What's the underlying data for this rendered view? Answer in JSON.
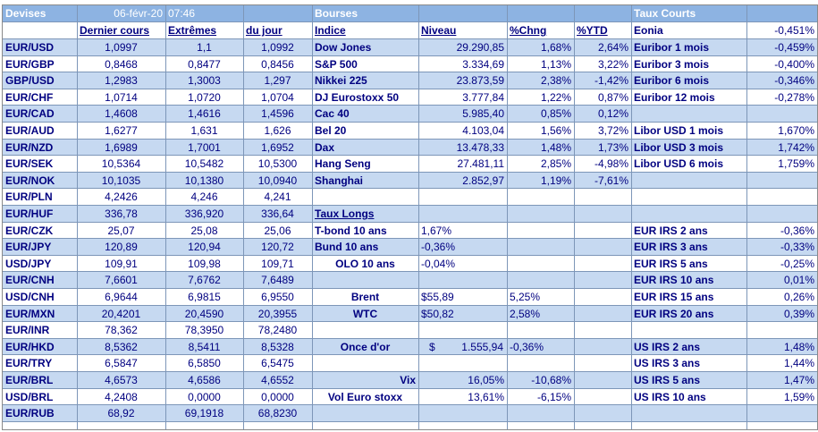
{
  "header": {
    "devises": "Devises",
    "date": "06-févr-20",
    "time": "07:46",
    "bourses": "Bourses",
    "taux_courts": "Taux Courts",
    "eonia_label": "Eonia",
    "eonia_value": "-0,451%"
  },
  "columns": {
    "dernier_cours": "Dernier cours",
    "extremes": "Extrêmes",
    "du_jour": "du jour",
    "indice": "Indice",
    "niveau": "Niveau",
    "chng": "%Chng",
    "ytd": "%YTD"
  },
  "devises": [
    {
      "pair": "EUR/USD",
      "dernier": "1,0997",
      "extreme": "1,1",
      "jour": "1,0992"
    },
    {
      "pair": "EUR/GBP",
      "dernier": "0,8468",
      "extreme": "0,8477",
      "jour": "0,8456"
    },
    {
      "pair": "GBP/USD",
      "dernier": "1,2983",
      "extreme": "1,3003",
      "jour": "1,297"
    },
    {
      "pair": "EUR/CHF",
      "dernier": "1,0714",
      "extreme": "1,0720",
      "jour": "1,0704"
    },
    {
      "pair": "EUR/CAD",
      "dernier": "1,4608",
      "extreme": "1,4616",
      "jour": "1,4596"
    },
    {
      "pair": "EUR/AUD",
      "dernier": "1,6277",
      "extreme": "1,631",
      "jour": "1,626"
    },
    {
      "pair": "EUR/NZD",
      "dernier": "1,6989",
      "extreme": "1,7001",
      "jour": "1,6952"
    },
    {
      "pair": "EUR/SEK",
      "dernier": "10,5364",
      "extreme": "10,5482",
      "jour": "10,5300"
    },
    {
      "pair": "EUR/NOK",
      "dernier": "10,1035",
      "extreme": "10,1380",
      "jour": "10,0940"
    },
    {
      "pair": "EUR/PLN",
      "dernier": "4,2426",
      "extreme": "4,246",
      "jour": "4,241"
    },
    {
      "pair": "EUR/HUF",
      "dernier": "336,78",
      "extreme": "336,920",
      "jour": "336,64"
    },
    {
      "pair": "EUR/CZK",
      "dernier": "25,07",
      "extreme": "25,08",
      "jour": "25,06"
    },
    {
      "pair": "EUR/JPY",
      "dernier": "120,89",
      "extreme": "120,94",
      "jour": "120,72"
    },
    {
      "pair": "USD/JPY",
      "dernier": "109,91",
      "extreme": "109,98",
      "jour": "109,71"
    },
    {
      "pair": "EUR/CNH",
      "dernier": "7,6601",
      "extreme": "7,6762",
      "jour": "7,6489"
    },
    {
      "pair": "USD/CNH",
      "dernier": "6,9644",
      "extreme": "6,9815",
      "jour": "6,9550"
    },
    {
      "pair": "EUR/MXN",
      "dernier": "20,4201",
      "extreme": "20,4590",
      "jour": "20,3955"
    },
    {
      "pair": "EUR/INR",
      "dernier": "78,362",
      "extreme": "78,3950",
      "jour": "78,2480"
    },
    {
      "pair": "EUR/HKD",
      "dernier": "8,5362",
      "extreme": "8,5411",
      "jour": "8,5328"
    },
    {
      "pair": "EUR/TRY",
      "dernier": "6,5847",
      "extreme": "6,5850",
      "jour": "6,5475"
    },
    {
      "pair": "EUR/BRL",
      "dernier": "4,6573",
      "extreme": "4,6586",
      "jour": "4,6552"
    },
    {
      "pair": "USD/BRL",
      "dernier": "4,2408",
      "extreme": "0,0000",
      "jour": "0,0000"
    },
    {
      "pair": "EUR/RUB",
      "dernier": "68,92",
      "extreme": "69,1918",
      "jour": "68,8230"
    }
  ],
  "bourses": [
    {
      "indice": "Dow Jones",
      "niveau": "29.290,85",
      "chng": "1,68%",
      "ytd": "2,64%"
    },
    {
      "indice": "S&P 500",
      "niveau": "3.334,69",
      "chng": "1,13%",
      "ytd": "3,22%"
    },
    {
      "indice": "Nikkei 225",
      "niveau": "23.873,59",
      "chng": "2,38%",
      "ytd": "-1,42%"
    },
    {
      "indice": "DJ Eurostoxx 50",
      "niveau": "3.777,84",
      "chng": "1,22%",
      "ytd": "0,87%"
    },
    {
      "indice": "Cac 40",
      "niveau": "5.985,40",
      "chng": "0,85%",
      "ytd": "0,12%"
    },
    {
      "indice": "Bel 20",
      "niveau": "4.103,04",
      "chng": "1,56%",
      "ytd": "3,72%"
    },
    {
      "indice": "Dax",
      "niveau": "13.478,33",
      "chng": "1,48%",
      "ytd": "1,73%"
    },
    {
      "indice": "Hang Seng",
      "niveau": "27.481,11",
      "chng": "2,85%",
      "ytd": "-4,98%"
    },
    {
      "indice": "Shanghai",
      "niveau": "2.852,97",
      "chng": "1,19%",
      "ytd": "-7,61%"
    }
  ],
  "taux_courts": [
    {
      "label": "Euribor 1 mois",
      "value": "-0,459%"
    },
    {
      "label": "Euribor 3 mois",
      "value": "-0,400%"
    },
    {
      "label": "Euribor 6 mois",
      "value": "-0,346%"
    },
    {
      "label": "Euribor 12 mois",
      "value": "-0,278%"
    },
    {
      "label": "",
      "value": ""
    },
    {
      "label": "Libor USD 1 mois",
      "value": "1,670%"
    },
    {
      "label": "Libor USD 3 mois",
      "value": "1,742%"
    },
    {
      "label": "Libor USD 6 mois",
      "value": "1,759%"
    }
  ],
  "taux_longs": {
    "title": "Taux Longs",
    "rows": [
      {
        "label": "T-bond 10 ans",
        "value": "1,67%"
      },
      {
        "label": "Bund 10 ans",
        "value": "-0,36%"
      },
      {
        "label": "OLO 10 ans",
        "value": "-0,04%"
      }
    ]
  },
  "commodities": [
    {
      "label": "Brent",
      "value": "$55,89",
      "chng": "5,25%"
    },
    {
      "label": "WTC",
      "value": "$50,82",
      "chng": "2,58%"
    },
    {
      "label": "Once d'or",
      "currency": "$",
      "value": "1.555,94",
      "chng": "-0,36%"
    }
  ],
  "volatility": [
    {
      "label": "Vix",
      "value": "16,05%",
      "chng": "-10,68%"
    },
    {
      "label": "Vol Euro stoxx",
      "value": "13,61%",
      "chng": "-6,15%"
    }
  ],
  "irs": [
    {
      "label": "EUR IRS 2 ans",
      "value": "-0,36%"
    },
    {
      "label": "EUR IRS 3 ans",
      "value": "-0,33%"
    },
    {
      "label": "EUR IRS 5 ans",
      "value": "-0,25%"
    },
    {
      "label": "EUR IRS 10 ans",
      "value": "0,01%"
    },
    {
      "label": "EUR IRS 15 ans",
      "value": "0,26%"
    },
    {
      "label": "EUR IRS 20 ans",
      "value": "0,39%"
    },
    {
      "label": "",
      "value": ""
    },
    {
      "label": "US IRS 2 ans",
      "value": "1,48%"
    },
    {
      "label": "US IRS 3 ans",
      "value": "1,44%"
    },
    {
      "label": "US IRS 5 ans",
      "value": "1,47%"
    },
    {
      "label": "US IRS 10 ans",
      "value": "1,59%"
    }
  ],
  "colors": {
    "header_bg": "#8db3e2",
    "row_bg": "#c6d9f1",
    "text": "#000080"
  }
}
